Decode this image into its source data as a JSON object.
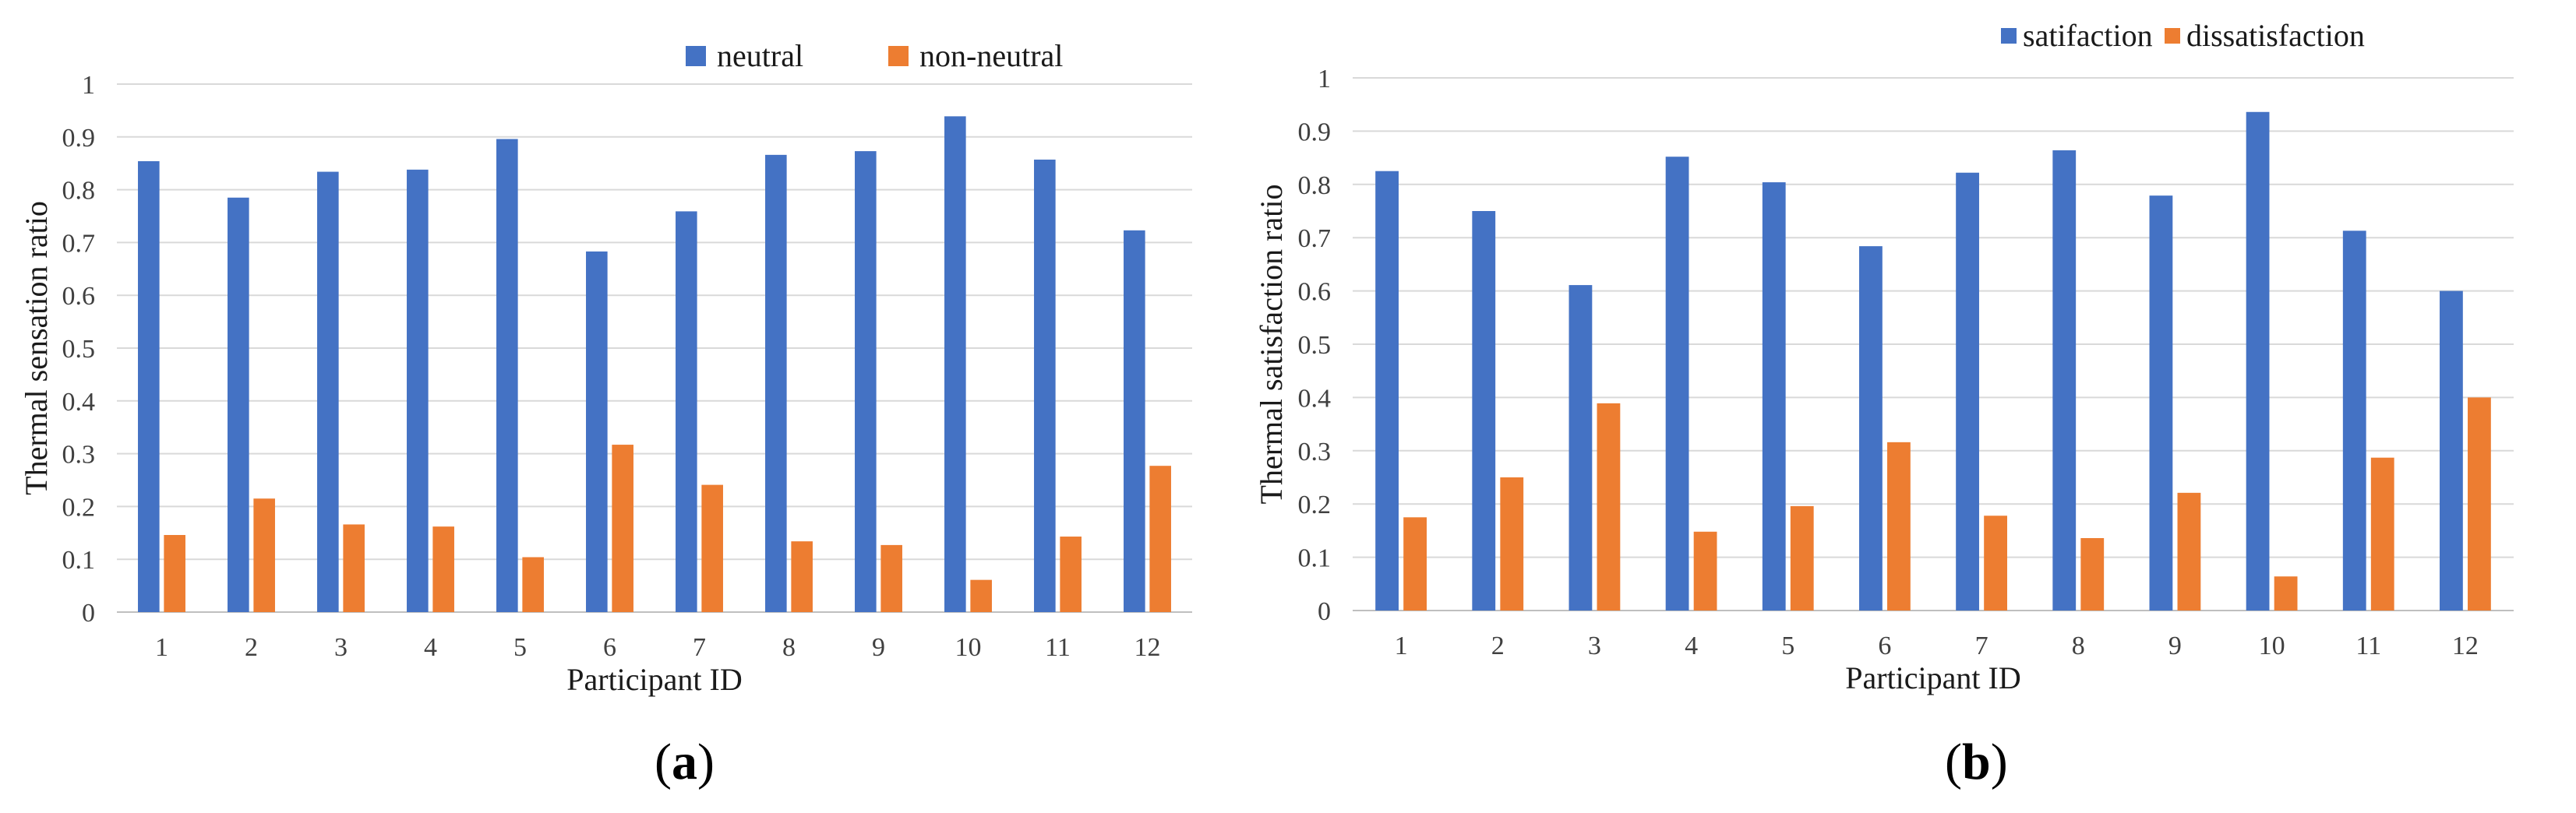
{
  "colors": {
    "series1": "#4472C4",
    "series2": "#ED7D31"
  },
  "chart_data": [
    {
      "type": "bar",
      "panel_label": "a",
      "title": "",
      "xlabel": "Participant ID",
      "ylabel": "Thermal sensation ratio",
      "ylim": [
        0,
        1
      ],
      "yticks": [
        "0",
        "0.1",
        "0.2",
        "0.3",
        "0.4",
        "0.5",
        "0.6",
        "0.7",
        "0.8",
        "0.9",
        "1"
      ],
      "grid": true,
      "legend_position": "top",
      "categories": [
        "1",
        "2",
        "3",
        "4",
        "5",
        "6",
        "7",
        "8",
        "9",
        "10",
        "11",
        "12"
      ],
      "series": [
        {
          "name": "neutral",
          "values": [
            0.854,
            0.785,
            0.834,
            0.838,
            0.896,
            0.683,
            0.759,
            0.866,
            0.873,
            0.939,
            0.857,
            0.723
          ]
        },
        {
          "name": "non-neutral",
          "values": [
            0.146,
            0.215,
            0.166,
            0.162,
            0.104,
            0.317,
            0.241,
            0.134,
            0.127,
            0.061,
            0.143,
            0.277
          ]
        }
      ]
    },
    {
      "type": "bar",
      "panel_label": "b",
      "title": "",
      "xlabel": "Participant ID",
      "ylabel": "Thermal satisfaction ratio",
      "ylim": [
        0,
        1
      ],
      "yticks": [
        "0",
        "0.1",
        "0.2",
        "0.3",
        "0.4",
        "0.5",
        "0.6",
        "0.7",
        "0.8",
        "0.9",
        "1"
      ],
      "grid": true,
      "legend_position": "top-right",
      "categories": [
        "1",
        "2",
        "3",
        "4",
        "5",
        "6",
        "7",
        "8",
        "9",
        "10",
        "11",
        "12"
      ],
      "series": [
        {
          "name": "satifaction",
          "values": [
            0.825,
            0.75,
            0.611,
            0.852,
            0.804,
            0.684,
            0.822,
            0.864,
            0.779,
            0.936,
            0.713,
            0.6
          ]
        },
        {
          "name": "dissatisfaction",
          "values": [
            0.175,
            0.25,
            0.389,
            0.148,
            0.196,
            0.316,
            0.178,
            0.136,
            0.221,
            0.064,
            0.287,
            0.4
          ]
        }
      ]
    }
  ]
}
